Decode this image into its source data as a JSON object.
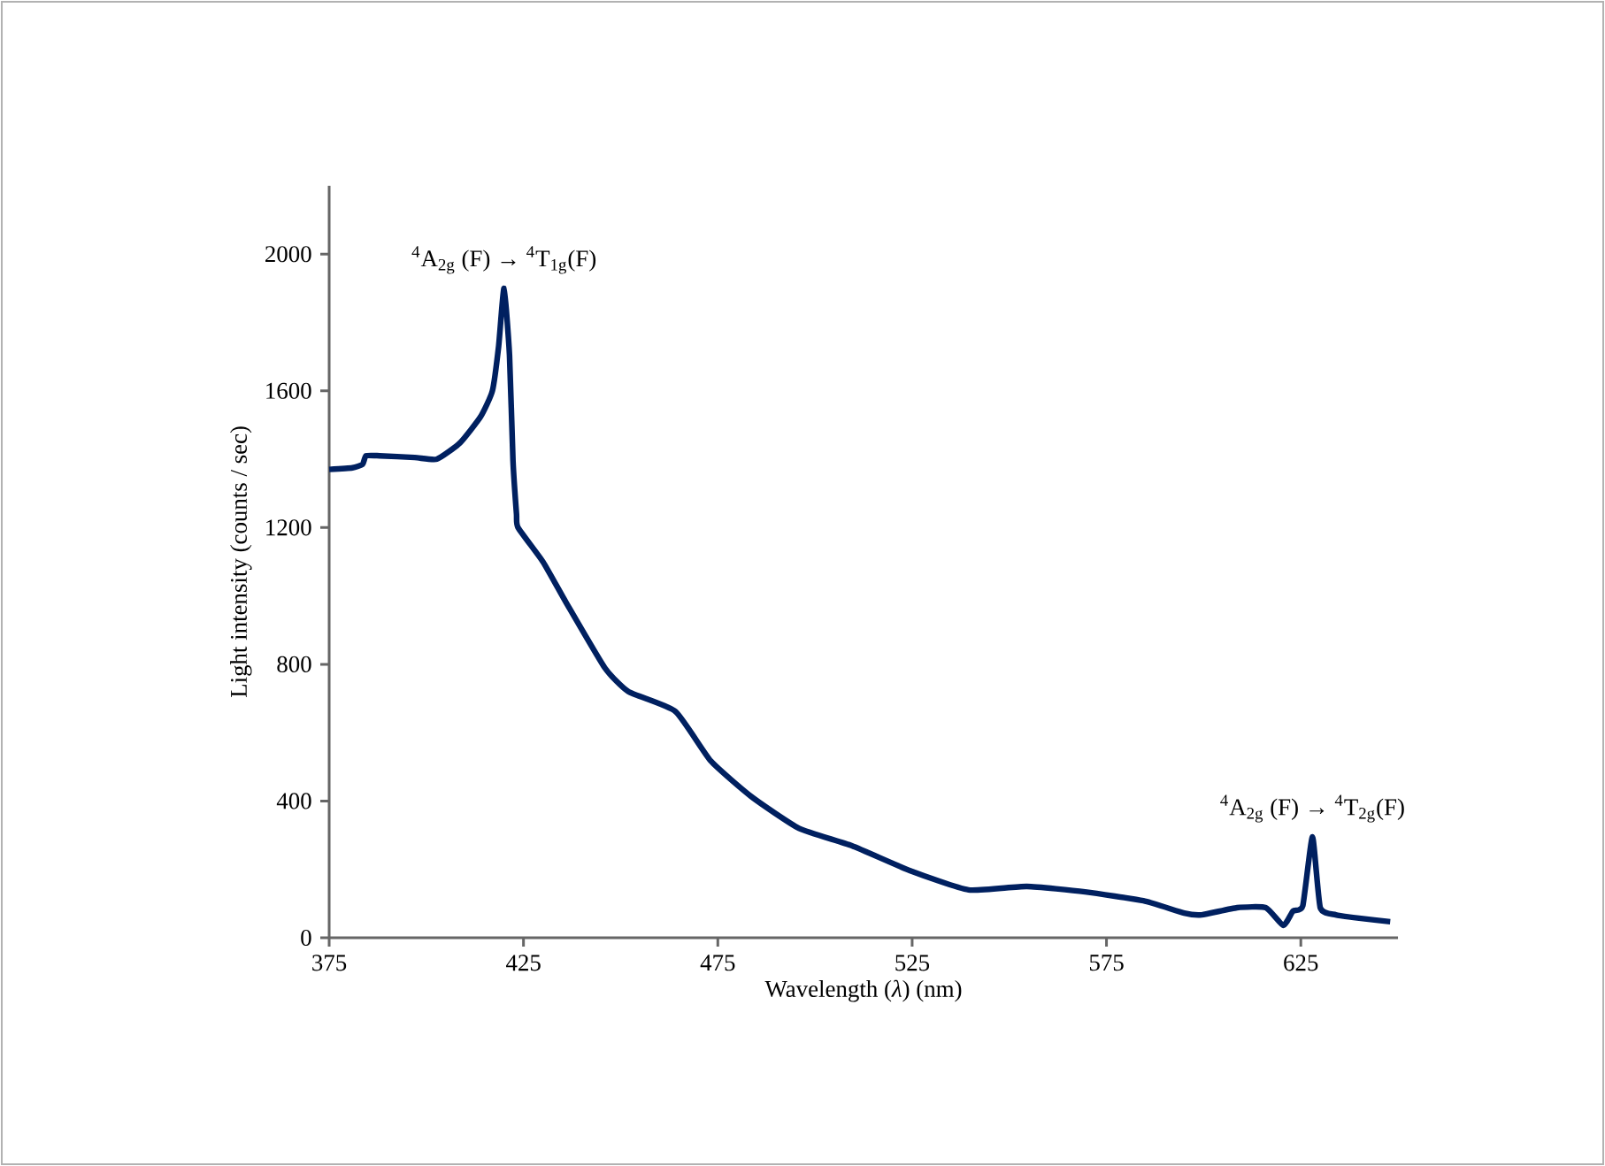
{
  "chart_data": {
    "type": "line",
    "xlabel": "Wavelength (*λ*) (nm)",
    "ylabel": "Light intensity (counts / sec)",
    "xlim": [
      375,
      650
    ],
    "xticks": [
      375,
      425,
      475,
      525,
      575,
      625
    ],
    "ylim": [
      0,
      2200
    ],
    "yticks": [
      0,
      400,
      800,
      1200,
      1600,
      2000
    ],
    "marker": "none",
    "line_style": "solid",
    "x": [
      375,
      381,
      383.6,
      384.5,
      388,
      397,
      402.7,
      408.6,
      414,
      417,
      418.6,
      420,
      421.4,
      422.3,
      423.2,
      423.6,
      430,
      436,
      445.9,
      452,
      464.1,
      473.2,
      483.6,
      495.9,
      509.5,
      524.5,
      539.5,
      554.5,
      569.5,
      584.5,
      595,
      599.5,
      608.6,
      616,
      620.5,
      623,
      625.5,
      628,
      630,
      634,
      640,
      648
    ],
    "series": [
      {
        "color": "#002060",
        "values": [
          1370,
          1375,
          1385,
          1410,
          1410,
          1405,
          1400,
          1447,
          1525,
          1600,
          1730,
          1900,
          1705,
          1395,
          1240,
          1200,
          1100,
          980,
          790,
          720,
          662,
          517,
          413,
          320,
          269,
          196,
          140,
          150,
          134,
          108,
          72,
          67,
          88,
          88,
          36,
          78,
          93,
          295,
          88,
          67,
          57,
          47
        ]
      }
    ],
    "annotations": [
      {
        "text": "$^{4}$A$_{2g}$ (F) → $^{4}$T$_{1g}$(F)",
        "x": 420,
        "y": 1900
      },
      {
        "text": "$^{4}$A$_{2g}$ (F) → $^{4}$T$_{2g}$(F)",
        "x": 628,
        "y": 295
      }
    ]
  }
}
